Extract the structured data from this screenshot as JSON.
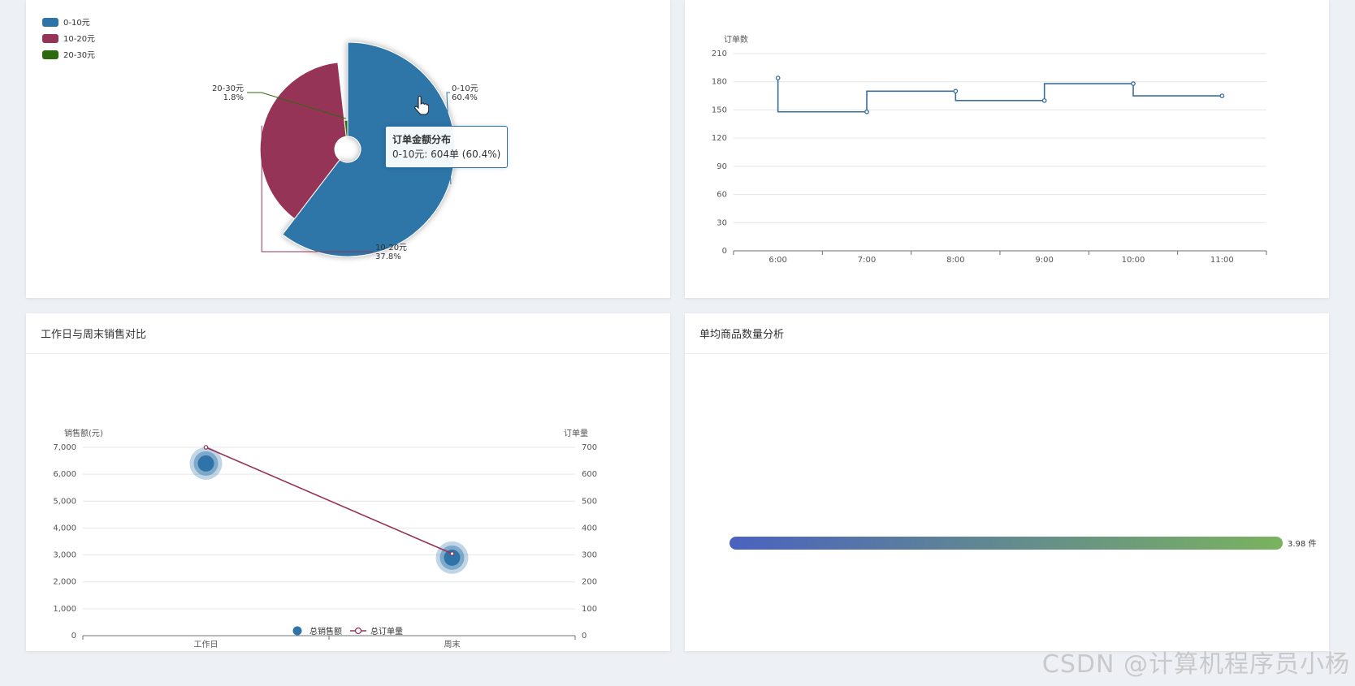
{
  "pie_card": {
    "tooltip": {
      "title": "订单金额分布",
      "text": "0-10元: 604单 (60.4%)"
    }
  },
  "weekday_card": {
    "title": "工作日与周末销售对比"
  },
  "avg_card": {
    "title": "单均商品数量分析",
    "value_label": "3.98 件"
  },
  "watermark": "CSDN @计算机程序员小杨",
  "colors": {
    "blue": "#2e74a8",
    "maroon": "#963457",
    "green": "#2d6a0f",
    "line": "#3a6e9a",
    "bar_start": "#4a62c0",
    "bar_end": "#7ab35e"
  },
  "chart_data": [
    {
      "type": "pie",
      "variant": "rose",
      "legend_position": "top-left",
      "categories": [
        "0-10元",
        "10-20元",
        "20-30元"
      ],
      "values": [
        60.4,
        37.8,
        1.8
      ],
      "labels": [
        {
          "name": "0-10元",
          "pct": "60.4%"
        },
        {
          "name": "10-20元",
          "pct": "37.8%"
        },
        {
          "name": "20-30元",
          "pct": "1.8%"
        }
      ]
    },
    {
      "type": "line",
      "step": true,
      "ylabel": "订单数",
      "x": [
        "6:00",
        "7:00",
        "8:00",
        "9:00",
        "10:00",
        "11:00"
      ],
      "values": [
        184,
        148,
        170,
        160,
        178,
        165
      ],
      "ylim": [
        0,
        210
      ],
      "yticks": [
        "0",
        "30",
        "60",
        "90",
        "120",
        "150",
        "180",
        "210"
      ],
      "grid": true
    },
    {
      "type": "scatter",
      "categories": [
        "工作日",
        "周末"
      ],
      "ylabel": "销售额(元)",
      "y2label": "订单量",
      "ylim": [
        0,
        7000
      ],
      "y2lim": [
        0,
        700
      ],
      "yticks": [
        "0",
        "1,000",
        "2,000",
        "3,000",
        "4,000",
        "5,000",
        "6,000",
        "7,000"
      ],
      "y2ticks": [
        "0",
        "100",
        "200",
        "300",
        "400",
        "500",
        "600",
        "700"
      ],
      "series": [
        {
          "name": "总销售额",
          "type": "scatter",
          "values": [
            6400,
            2900
          ]
        },
        {
          "name": "总订单量",
          "type": "line",
          "axis": "right",
          "values": [
            700,
            305
          ]
        }
      ],
      "legend_position": "bottom-center"
    },
    {
      "type": "bar",
      "orientation": "horizontal",
      "values": [
        3.98
      ],
      "value_labels": [
        "3.98 件"
      ]
    }
  ]
}
